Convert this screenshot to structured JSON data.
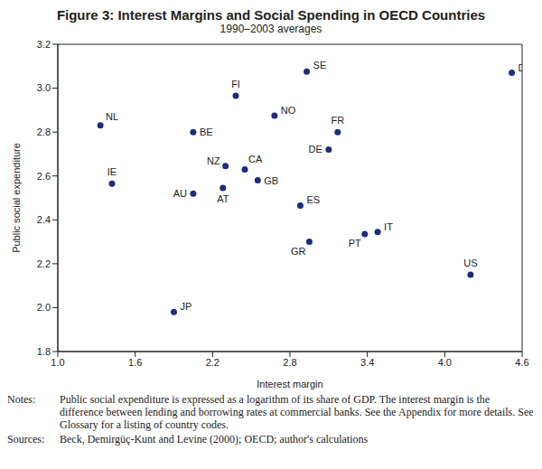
{
  "chart_data": {
    "type": "scatter",
    "title": "Figure 3: Interest Margins and Social Spending in OECD Countries",
    "subtitle": "1990–2003 averages",
    "x_label": "Interest margin",
    "y_label": "Public social expenditure",
    "color": "#1c2d7a",
    "marker": "circle",
    "grid": false,
    "points": [
      {
        "label": "NL",
        "x": 1.33,
        "y": 2.83
      },
      {
        "label": "IE",
        "x": 1.42,
        "y": 2.565
      },
      {
        "label": "BE",
        "x": 2.05,
        "y": 2.8
      },
      {
        "label": "AU",
        "x": 2.05,
        "y": 2.52
      },
      {
        "label": "JP",
        "x": 1.9,
        "y": 1.98
      },
      {
        "label": "FI",
        "x": 2.38,
        "y": 2.965
      },
      {
        "label": "NZ",
        "x": 2.3,
        "y": 2.645
      },
      {
        "label": "AT",
        "x": 2.28,
        "y": 2.545
      },
      {
        "label": "CA",
        "x": 2.45,
        "y": 2.63
      },
      {
        "label": "GB",
        "x": 2.55,
        "y": 2.58
      },
      {
        "label": "NO",
        "x": 2.68,
        "y": 2.875
      },
      {
        "label": "SE",
        "x": 2.93,
        "y": 3.075
      },
      {
        "label": "ES",
        "x": 2.88,
        "y": 2.465
      },
      {
        "label": "GR",
        "x": 2.95,
        "y": 2.3
      },
      {
        "label": "DE",
        "x": 3.1,
        "y": 2.72
      },
      {
        "label": "FR",
        "x": 3.17,
        "y": 2.8
      },
      {
        "label": "PT",
        "x": 3.38,
        "y": 2.335
      },
      {
        "label": "IT",
        "x": 3.48,
        "y": 2.345
      },
      {
        "label": "US",
        "x": 4.2,
        "y": 2.15
      },
      {
        "label": "DK",
        "x": 4.52,
        "y": 3.07
      }
    ],
    "xlim": [
      1.0,
      4.6
    ],
    "xticks": [
      {
        "value": 1.0,
        "label": "1.0"
      },
      1.6,
      2.2,
      2.8,
      3.4,
      {
        "value": 4.0,
        "label": "4.0"
      },
      4.6
    ],
    "ylim": [
      1.8,
      3.2
    ],
    "yticks": [
      1.8,
      {
        "value": 2.0,
        "label": "2.0"
      },
      2.2,
      2.4,
      2.6,
      2.8,
      {
        "value": 3.0,
        "label": "3.0"
      },
      3.2
    ],
    "notes_label": "Notes:",
    "notes": "Public social expenditure is expressed as a logarithm of its share of GDP. The interest margin is the difference between lending and borrowing rates at commercial banks. See the Appendix for more details. See Glossary for a listing of country codes.",
    "sources_label": "Sources:",
    "sources": "Beck, Demirgüç-Kunt and Levine (2000); OECD; author's calculations"
  }
}
